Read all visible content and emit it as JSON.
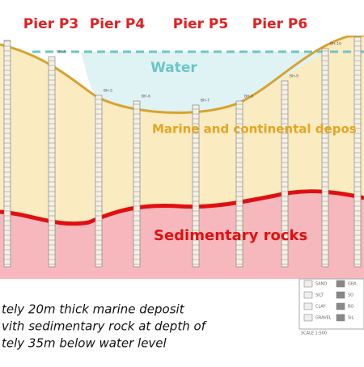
{
  "piers": [
    "Pier P3",
    "Pier P4",
    "Pier P5",
    "Pier P6"
  ],
  "layers": {
    "water": "Water",
    "deposit": "Marine and continental depos",
    "rock": "Sedimentary rocks"
  },
  "boreholes": [
    "BH-4",
    "BH-5",
    "BH-6",
    "BH-7",
    "BH-8",
    "BH-9",
    "BH-10"
  ],
  "caption": [
    "tely 20m thick marine deposit",
    "vith sedimentary rock at depth of",
    "tely 35m below water level"
  ],
  "legend": {
    "left": [
      "SAND",
      "SILT",
      "CLAY",
      "GRAVEL"
    ],
    "right": [
      "GRA",
      "SO",
      "BO",
      "SIL"
    ],
    "scale": "SCALE 1:500"
  }
}
